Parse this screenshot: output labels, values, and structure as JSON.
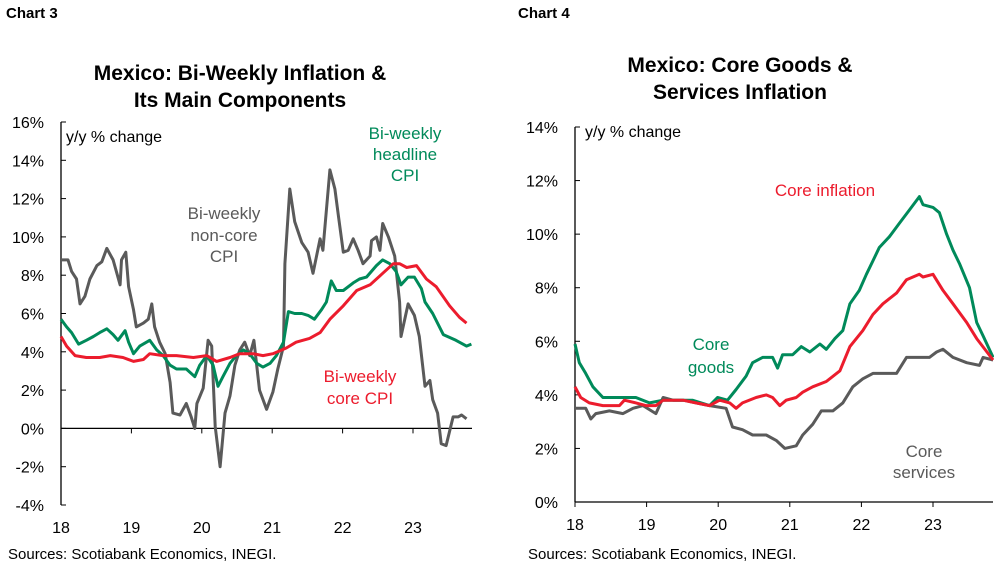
{
  "charts": [
    {
      "label": "Chart 3",
      "title_lines": [
        "Mexico: Bi-Weekly Inflation &",
        "Its Main Components"
      ],
      "source": "Sources: Scotiabank Economics, INEGI.",
      "chart_data": {
        "type": "line",
        "title": "Mexico: Bi-Weekly Inflation & Its Main Components",
        "ylabel": "y/y % change",
        "ylim": [
          -4,
          16
        ],
        "xlim": [
          18,
          23.83
        ],
        "yticks": [
          "-4%",
          "-2%",
          "0%",
          "2%",
          "4%",
          "6%",
          "8%",
          "10%",
          "12%",
          "14%",
          "16%"
        ],
        "xticks": [
          "18",
          "19",
          "20",
          "21",
          "22",
          "23"
        ],
        "grid": false,
        "series": [
          {
            "name": "Bi-weekly non-core CPI",
            "name_lines": [
              "Bi-weekly",
              "non-core",
              "CPI"
            ],
            "color": "#5a5a5a",
            "x": [
              18,
              18.1,
              18.15,
              18.22,
              18.27,
              18.34,
              18.41,
              18.51,
              18.58,
              18.65,
              18.74,
              18.84,
              18.86,
              18.92,
              18.96,
              19.03,
              19.07,
              19.17,
              19.24,
              19.29,
              19.33,
              19.4,
              19.48,
              19.55,
              19.59,
              19.69,
              19.78,
              19.85,
              19.9,
              19.93,
              20.02,
              20.09,
              20.14,
              20.19,
              20.26,
              20.33,
              20.4,
              20.47,
              20.54,
              20.61,
              20.68,
              20.74,
              20.82,
              20.92,
              21.01,
              21.08,
              21.16,
              21.18,
              21.25,
              21.32,
              21.42,
              21.51,
              21.58,
              21.68,
              21.72,
              21.82,
              21.89,
              21.94,
              22.01,
              22.08,
              22.15,
              22.22,
              22.29,
              22.39,
              22.41,
              22.48,
              22.53,
              22.57,
              22.65,
              22.74,
              22.81,
              22.83,
              22.93,
              23.02,
              23.09,
              23.17,
              23.24,
              23.28,
              23.35,
              23.4,
              23.47,
              23.57,
              23.64,
              23.69,
              23.76
            ],
            "y": [
              8.8,
              8.8,
              8.2,
              7.8,
              6.5,
              6.9,
              7.8,
              8.5,
              8.7,
              9.4,
              8.8,
              7.5,
              8.8,
              9.2,
              7.4,
              6.2,
              5.3,
              5.5,
              5.7,
              6.5,
              5.3,
              4.5,
              3.9,
              2.4,
              0.8,
              0.7,
              1.3,
              0.6,
              0,
              1.3,
              2.1,
              4.6,
              4.3,
              0.1,
              -2.0,
              0.8,
              1.7,
              3.3,
              4.1,
              4.5,
              3.8,
              4.6,
              2.0,
              1.0,
              1.9,
              3.1,
              4.3,
              8.6,
              12.5,
              10.8,
              9.7,
              9.2,
              8.1,
              9.9,
              9.3,
              13.5,
              12.5,
              11.1,
              9.2,
              9.3,
              9.9,
              9.3,
              8.6,
              9.0,
              9.8,
              10.0,
              9.3,
              10.7,
              10.0,
              9.0,
              6.6,
              4.8,
              6.5,
              5.9,
              4.8,
              2.2,
              2.5,
              1.5,
              0.8,
              -0.8,
              -0.9,
              0.6,
              0.6,
              0.7,
              0.5
            ]
          },
          {
            "name": "Bi-weekly headline CPI",
            "name_lines": [
              "Bi-weekly",
              "headline",
              "CPI"
            ],
            "color": "#008a5a",
            "x": [
              18,
              18.08,
              18.15,
              18.25,
              18.36,
              18.46,
              18.55,
              18.65,
              18.74,
              18.81,
              18.91,
              18.96,
              19.03,
              19.12,
              19.26,
              19.36,
              19.45,
              19.55,
              19.64,
              19.78,
              19.9,
              19.97,
              20.07,
              20.16,
              20.23,
              20.3,
              20.4,
              20.49,
              20.59,
              20.68,
              20.78,
              20.87,
              20.97,
              21.06,
              21.16,
              21.23,
              21.32,
              21.42,
              21.51,
              21.6,
              21.7,
              21.77,
              21.84,
              21.91,
              22.01,
              22.15,
              22.24,
              22.34,
              22.48,
              22.57,
              22.67,
              22.76,
              22.83,
              22.93,
              23.02,
              23.12,
              23.17,
              23.28,
              23.43,
              23.61,
              23.76,
              23.83
            ],
            "y": [
              5.7,
              5.3,
              5.0,
              4.4,
              4.6,
              4.8,
              5.0,
              5.2,
              4.9,
              4.6,
              5.1,
              4.5,
              3.9,
              4.3,
              4.6,
              4.1,
              3.8,
              3.3,
              3.1,
              3.1,
              2.7,
              3.3,
              3.8,
              3.3,
              2.2,
              2.7,
              3.4,
              3.8,
              4.1,
              3.9,
              3.4,
              3.2,
              3.4,
              3.8,
              4.5,
              6.1,
              6.0,
              6.0,
              5.9,
              5.7,
              6.2,
              6.6,
              7.7,
              7.2,
              7.2,
              7.6,
              7.8,
              7.9,
              8.5,
              8.8,
              8.6,
              8.2,
              7.5,
              7.9,
              7.9,
              7.3,
              6.6,
              6.0,
              4.9,
              4.6,
              4.3,
              4.4
            ]
          },
          {
            "name": "Bi-weekly core CPI",
            "name_lines": [
              "Bi-weekly",
              "core CPI"
            ],
            "color": "#ec1c2d",
            "x": [
              18,
              18.08,
              18.2,
              18.36,
              18.55,
              18.7,
              18.88,
              19.03,
              19.17,
              19.26,
              19.45,
              19.64,
              19.88,
              20.07,
              20.21,
              20.4,
              20.54,
              20.73,
              20.87,
              21.01,
              21.2,
              21.34,
              21.53,
              21.68,
              21.82,
              22.01,
              22.2,
              22.39,
              22.57,
              22.72,
              22.81,
              22.91,
              23.05,
              23.19,
              23.33,
              23.52,
              23.66,
              23.76
            ],
            "y": [
              4.8,
              4.3,
              3.8,
              3.7,
              3.7,
              3.8,
              3.7,
              3.5,
              3.6,
              3.9,
              3.8,
              3.8,
              3.7,
              3.8,
              3.5,
              3.7,
              3.9,
              3.9,
              3.8,
              3.9,
              4.2,
              4.5,
              4.7,
              5.0,
              5.7,
              6.4,
              7.2,
              7.5,
              8.1,
              8.6,
              8.6,
              8.4,
              8.5,
              7.8,
              7.4,
              6.4,
              5.8,
              5.5
            ]
          }
        ]
      }
    },
    {
      "label": "Chart 4",
      "title_lines": [
        "Mexico: Core Goods &",
        "Services Inflation"
      ],
      "source": "Sources: Scotiabank Economics, INEGI.",
      "chart_data": {
        "type": "line",
        "title": "Mexico: Core Goods & Services Inflation",
        "ylabel": "y/y % change",
        "ylim": [
          0,
          14
        ],
        "xlim": [
          18,
          23.85
        ],
        "yticks": [
          "0%",
          "2%",
          "4%",
          "6%",
          "8%",
          "10%",
          "12%",
          "14%"
        ],
        "xticks": [
          "18",
          "19",
          "20",
          "21",
          "22",
          "23"
        ],
        "grid": false,
        "series": [
          {
            "name": "Core services",
            "name_lines": [
              "Core",
              "services"
            ],
            "color": "#5a5a5a",
            "x": [
              18,
              18.15,
              18.22,
              18.29,
              18.48,
              18.67,
              18.81,
              18.95,
              19.13,
              19.23,
              19.37,
              19.51,
              19.69,
              19.88,
              20.11,
              20.2,
              20.34,
              20.48,
              20.67,
              20.81,
              20.93,
              21.09,
              21.18,
              21.32,
              21.44,
              21.6,
              21.74,
              21.88,
              22.02,
              22.16,
              22.3,
              22.49,
              22.63,
              22.81,
              22.95,
              23.05,
              23.14,
              23.28,
              23.47,
              23.65,
              23.7,
              23.84
            ],
            "y": [
              3.5,
              3.5,
              3.1,
              3.3,
              3.4,
              3.3,
              3.5,
              3.6,
              3.3,
              3.9,
              3.8,
              3.8,
              3.7,
              3.6,
              3.5,
              2.8,
              2.7,
              2.5,
              2.5,
              2.3,
              2.0,
              2.1,
              2.5,
              2.9,
              3.4,
              3.4,
              3.7,
              4.3,
              4.6,
              4.8,
              4.8,
              4.8,
              5.4,
              5.4,
              5.4,
              5.6,
              5.7,
              5.4,
              5.2,
              5.1,
              5.4,
              5.3
            ]
          },
          {
            "name": "Core goods",
            "name_lines": [
              "Core",
              "goods"
            ],
            "color": "#008a5a",
            "x": [
              18,
              18.06,
              18.15,
              18.25,
              18.39,
              18.53,
              18.67,
              18.85,
              19.04,
              19.23,
              19.41,
              19.64,
              19.88,
              19.99,
              20.13,
              20.25,
              20.39,
              20.48,
              20.62,
              20.76,
              20.83,
              20.9,
              21.04,
              21.16,
              21.28,
              21.42,
              21.51,
              21.63,
              21.74,
              21.84,
              21.97,
              22.07,
              22.16,
              22.25,
              22.39,
              22.53,
              22.67,
              22.81,
              22.86,
              23.0,
              23.09,
              23.19,
              23.28,
              23.37,
              23.51,
              23.61,
              23.7,
              23.84
            ],
            "y": [
              5.9,
              5.2,
              4.8,
              4.3,
              3.9,
              3.9,
              3.9,
              3.9,
              3.7,
              3.8,
              3.8,
              3.8,
              3.6,
              3.9,
              3.8,
              4.2,
              4.7,
              5.2,
              5.4,
              5.4,
              5.0,
              5.5,
              5.5,
              5.8,
              5.6,
              5.9,
              5.7,
              6.1,
              6.4,
              7.4,
              7.9,
              8.5,
              9.0,
              9.5,
              9.9,
              10.4,
              10.9,
              11.4,
              11.1,
              11.0,
              10.8,
              10.0,
              9.4,
              8.9,
              8.0,
              6.7,
              6.2,
              5.4
            ]
          },
          {
            "name": "Core inflation",
            "name_lines": [
              "Core inflation"
            ],
            "color": "#ec1c2d",
            "x": [
              18,
              18.08,
              18.2,
              18.39,
              18.62,
              18.69,
              18.85,
              18.99,
              19.13,
              19.23,
              19.51,
              19.69,
              19.88,
              20.02,
              20.16,
              20.25,
              20.34,
              20.53,
              20.67,
              20.76,
              20.86,
              20.95,
              21.09,
              21.18,
              21.32,
              21.51,
              21.7,
              21.84,
              22.02,
              22.16,
              22.3,
              22.49,
              22.63,
              22.81,
              22.86,
              23.0,
              23.14,
              23.28,
              23.47,
              23.61,
              23.84
            ],
            "y": [
              4.3,
              3.9,
              3.7,
              3.6,
              3.6,
              3.8,
              3.7,
              3.6,
              3.6,
              3.8,
              3.8,
              3.7,
              3.6,
              3.8,
              3.7,
              3.5,
              3.7,
              3.9,
              4.0,
              3.9,
              3.6,
              3.8,
              3.9,
              4.1,
              4.3,
              4.5,
              4.9,
              5.8,
              6.4,
              7.0,
              7.4,
              7.8,
              8.3,
              8.5,
              8.4,
              8.5,
              7.9,
              7.4,
              6.7,
              6.1,
              5.3
            ]
          }
        ]
      }
    }
  ]
}
